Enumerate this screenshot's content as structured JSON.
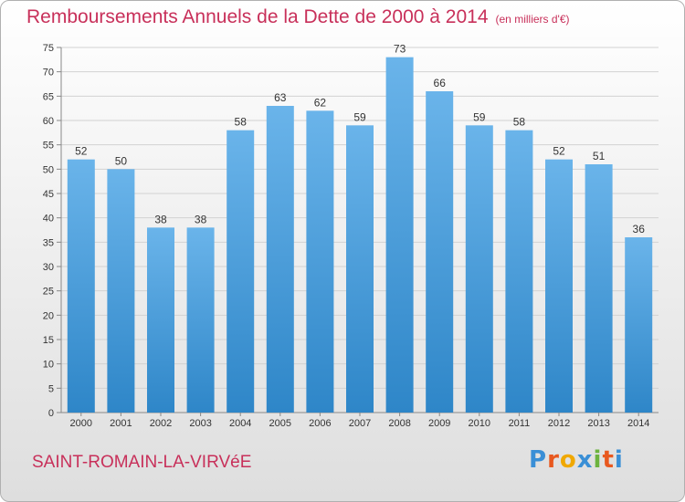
{
  "title": {
    "main": "Remboursements Annuels de la Dette de 2000 à 2014",
    "unit": "(en milliers d'€)"
  },
  "location": "SAINT-ROMAIN-LA-VIRVéE",
  "logo": {
    "letters": [
      "P",
      "r",
      "o",
      "x",
      "i",
      "t",
      "i"
    ],
    "colors": [
      "#3a8fd6",
      "#e8581f",
      "#f0a800",
      "#3a8fd6",
      "#6cb33f",
      "#e8581f",
      "#3a8fd6"
    ]
  },
  "colors": {
    "bar_top": "#6ab4ea",
    "bar_bottom": "#2e86c8",
    "text_accent": "#c8305a"
  },
  "chart_data": {
    "type": "bar",
    "categories": [
      "2000",
      "2001",
      "2002",
      "2003",
      "2004",
      "2005",
      "2006",
      "2007",
      "2008",
      "2009",
      "2010",
      "2011",
      "2012",
      "2013",
      "2014"
    ],
    "values": [
      52,
      50,
      38,
      38,
      58,
      63,
      62,
      59,
      73,
      66,
      59,
      58,
      52,
      51,
      36
    ],
    "ylim": [
      0,
      75
    ],
    "yticks": [
      0,
      5,
      10,
      15,
      20,
      25,
      30,
      35,
      40,
      45,
      50,
      55,
      60,
      65,
      70,
      75
    ],
    "grid": true
  }
}
